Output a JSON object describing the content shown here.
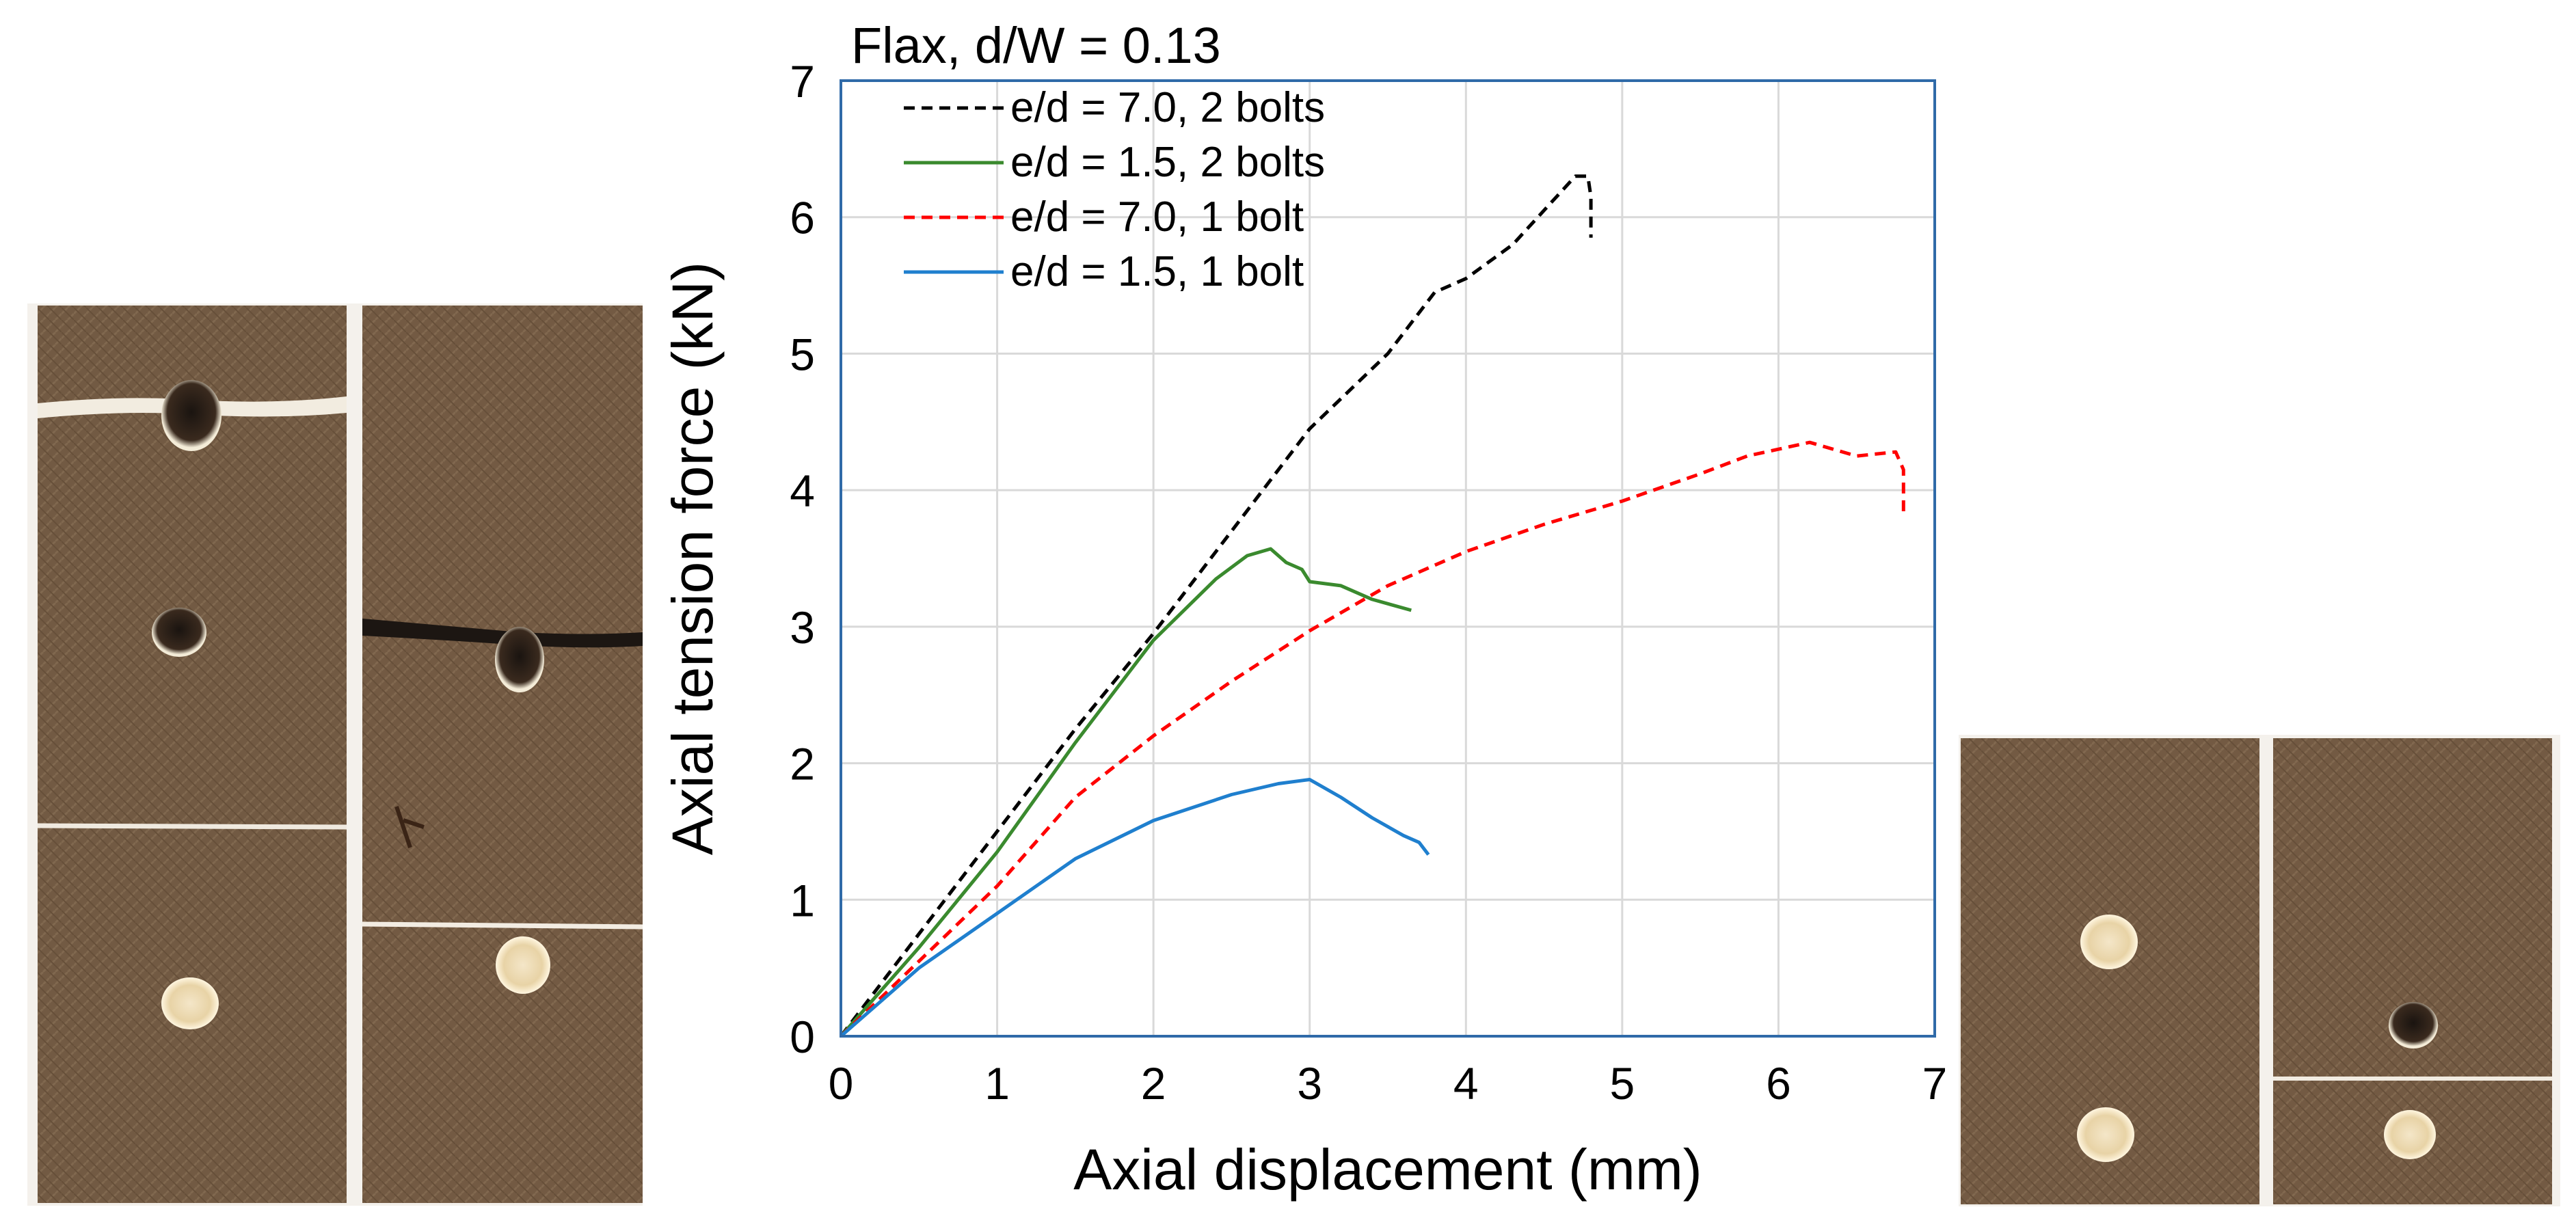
{
  "chart_data": {
    "type": "line",
    "title": "Flax,  d/W = 0.13",
    "xlabel": "Axial displacement (mm)",
    "ylabel": "Axial tension force (kN)",
    "xlim": [
      0,
      7
    ],
    "ylim": [
      0,
      7
    ],
    "xticks": [
      "0",
      "1",
      "2",
      "3",
      "4",
      "5",
      "6",
      "7"
    ],
    "yticks": [
      "0",
      "1",
      "2",
      "3",
      "4",
      "5",
      "6",
      "7"
    ],
    "grid": true,
    "legend_position": "top-left",
    "series": [
      {
        "name": "e/d = 7.0, 2 bolts",
        "color": "#000000",
        "dash": "dashed",
        "x": [
          0,
          0.5,
          1.0,
          1.5,
          2.0,
          2.5,
          3.0,
          3.5,
          3.8,
          4.0,
          4.3,
          4.5,
          4.7,
          4.78,
          4.8,
          4.8
        ],
        "y": [
          0,
          0.75,
          1.5,
          2.25,
          2.95,
          3.7,
          4.45,
          5.0,
          5.45,
          5.55,
          5.8,
          6.05,
          6.3,
          6.3,
          6.15,
          5.85
        ]
      },
      {
        "name": "e/d = 1.5, 2 bolts",
        "color": "#3a8a2e",
        "dash": "solid",
        "x": [
          0,
          0.5,
          1.0,
          1.5,
          2.0,
          2.4,
          2.6,
          2.75,
          2.85,
          2.95,
          3.0,
          3.2,
          3.4,
          3.65
        ],
        "y": [
          0,
          0.65,
          1.35,
          2.15,
          2.9,
          3.35,
          3.52,
          3.57,
          3.47,
          3.42,
          3.33,
          3.3,
          3.2,
          3.12
        ]
      },
      {
        "name": "e/d = 7.0, 1 bolt",
        "color": "#ff0000",
        "dash": "dashed",
        "x": [
          0,
          0.5,
          1.0,
          1.5,
          2.0,
          2.5,
          3.0,
          3.5,
          4.0,
          4.5,
          5.0,
          5.5,
          5.8,
          6.0,
          6.2,
          6.5,
          6.75,
          6.8,
          6.8
        ],
        "y": [
          0,
          0.55,
          1.1,
          1.75,
          2.2,
          2.6,
          2.97,
          3.3,
          3.55,
          3.75,
          3.92,
          4.12,
          4.25,
          4.3,
          4.35,
          4.25,
          4.28,
          4.15,
          3.8
        ]
      },
      {
        "name": "e/d = 1.5, 1 bolt",
        "color": "#1f7fce",
        "dash": "solid",
        "x": [
          0,
          0.5,
          1.0,
          1.5,
          2.0,
          2.5,
          2.8,
          3.0,
          3.2,
          3.4,
          3.6,
          3.7,
          3.76
        ],
        "y": [
          0,
          0.5,
          0.9,
          1.3,
          1.58,
          1.77,
          1.85,
          1.88,
          1.75,
          1.6,
          1.47,
          1.42,
          1.33
        ]
      }
    ]
  },
  "photos": {
    "left_specimens": "fractured-specimen-photos-e-d-1.5",
    "right_specimens": "fractured-specimen-photos-e-d-7.0"
  }
}
